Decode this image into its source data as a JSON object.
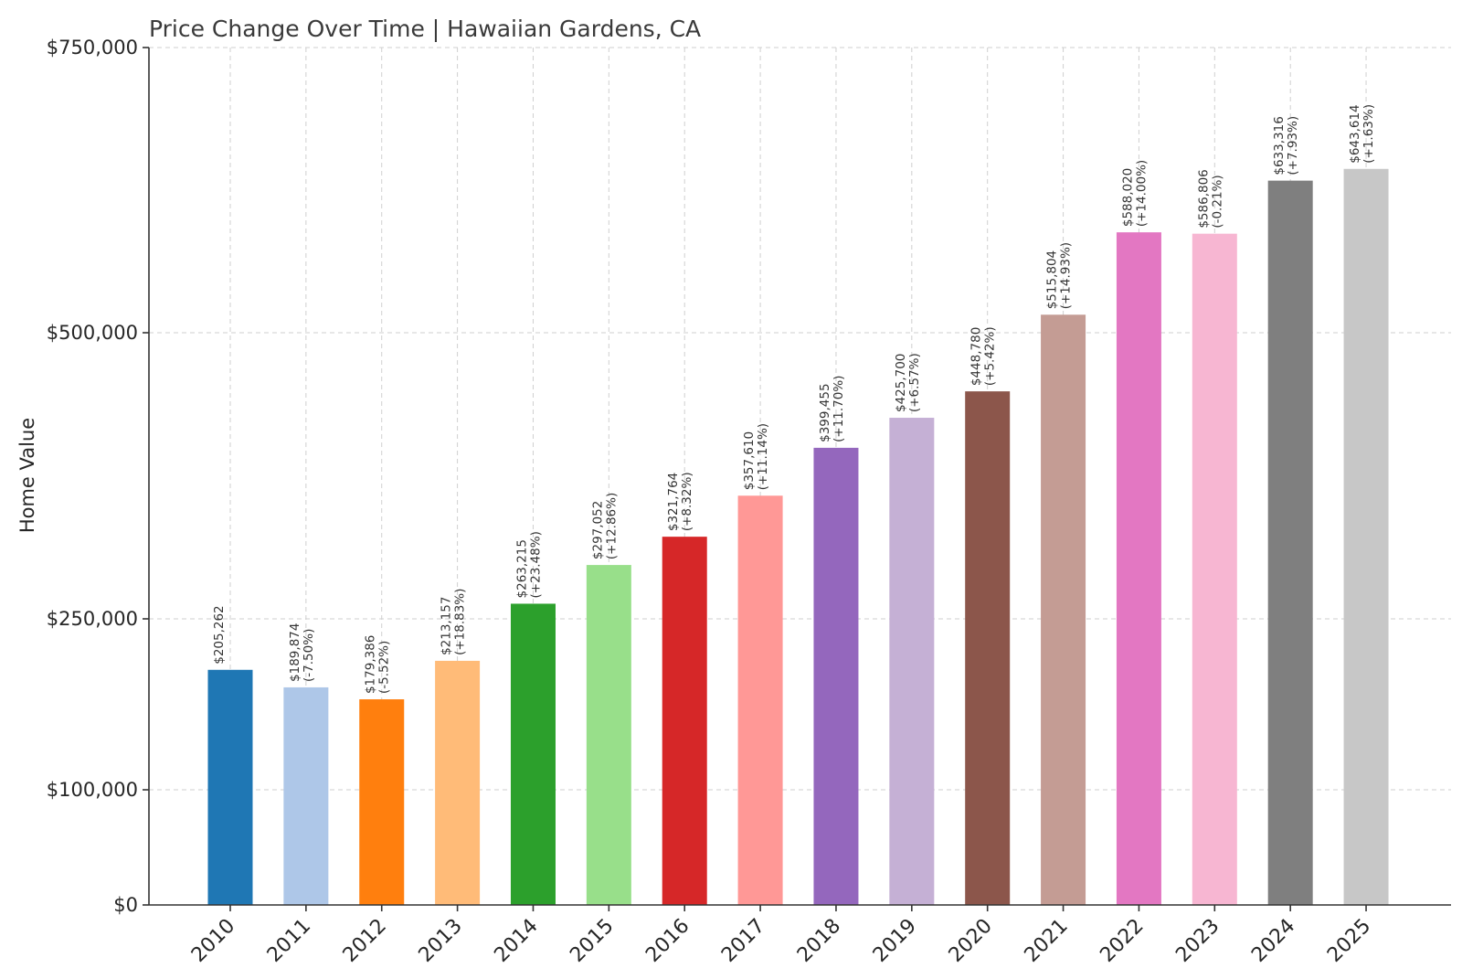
{
  "chart_data": {
    "type": "bar",
    "title": "Price Change Over Time | Hawaiian Gardens, CA",
    "xlabel": "",
    "ylabel": "Home Value",
    "ylim": [
      0,
      750000
    ],
    "yticks": [
      0,
      100000,
      250000,
      500000,
      750000
    ],
    "ytick_labels": [
      "$0",
      "$100,000",
      "$250,000",
      "$500,000",
      "$750,000"
    ],
    "grid": true,
    "categories": [
      "2010",
      "2011",
      "2012",
      "2013",
      "2014",
      "2015",
      "2016",
      "2017",
      "2018",
      "2019",
      "2020",
      "2021",
      "2022",
      "2023",
      "2024",
      "2025"
    ],
    "values": [
      205262,
      189874,
      179386,
      213157,
      263215,
      297052,
      321764,
      357610,
      399455,
      425700,
      448780,
      515804,
      588020,
      586806,
      633316,
      643614
    ],
    "value_labels": [
      "$205,262",
      "$189,874",
      "$179,386",
      "$213,157",
      "$263,215",
      "$297,052",
      "$321,764",
      "$357,610",
      "$399,455",
      "$425,700",
      "$448,780",
      "$515,804",
      "$588,020",
      "$586,806",
      "$633,316",
      "$643,614"
    ],
    "change_labels": [
      "",
      "(-7.50%)",
      "(-5.52%)",
      "(+18.83%)",
      "(+23.48%)",
      "(+12.86%)",
      "(+8.32%)",
      "(+11.14%)",
      "(+11.70%)",
      "(+6.57%)",
      "(+5.42%)",
      "(+14.93%)",
      "(+14.00%)",
      "(-0.21%)",
      "(+7.93%)",
      "(+1.63%)"
    ],
    "colors": [
      "#1f77b4",
      "#aec7e8",
      "#ff7f0e",
      "#ffbb78",
      "#2ca02c",
      "#98df8a",
      "#d62728",
      "#ff9896",
      "#9467bd",
      "#c5b0d5",
      "#8c564b",
      "#c49c94",
      "#e377c2",
      "#f7b6d2",
      "#7f7f7f",
      "#c7c7c7"
    ]
  }
}
